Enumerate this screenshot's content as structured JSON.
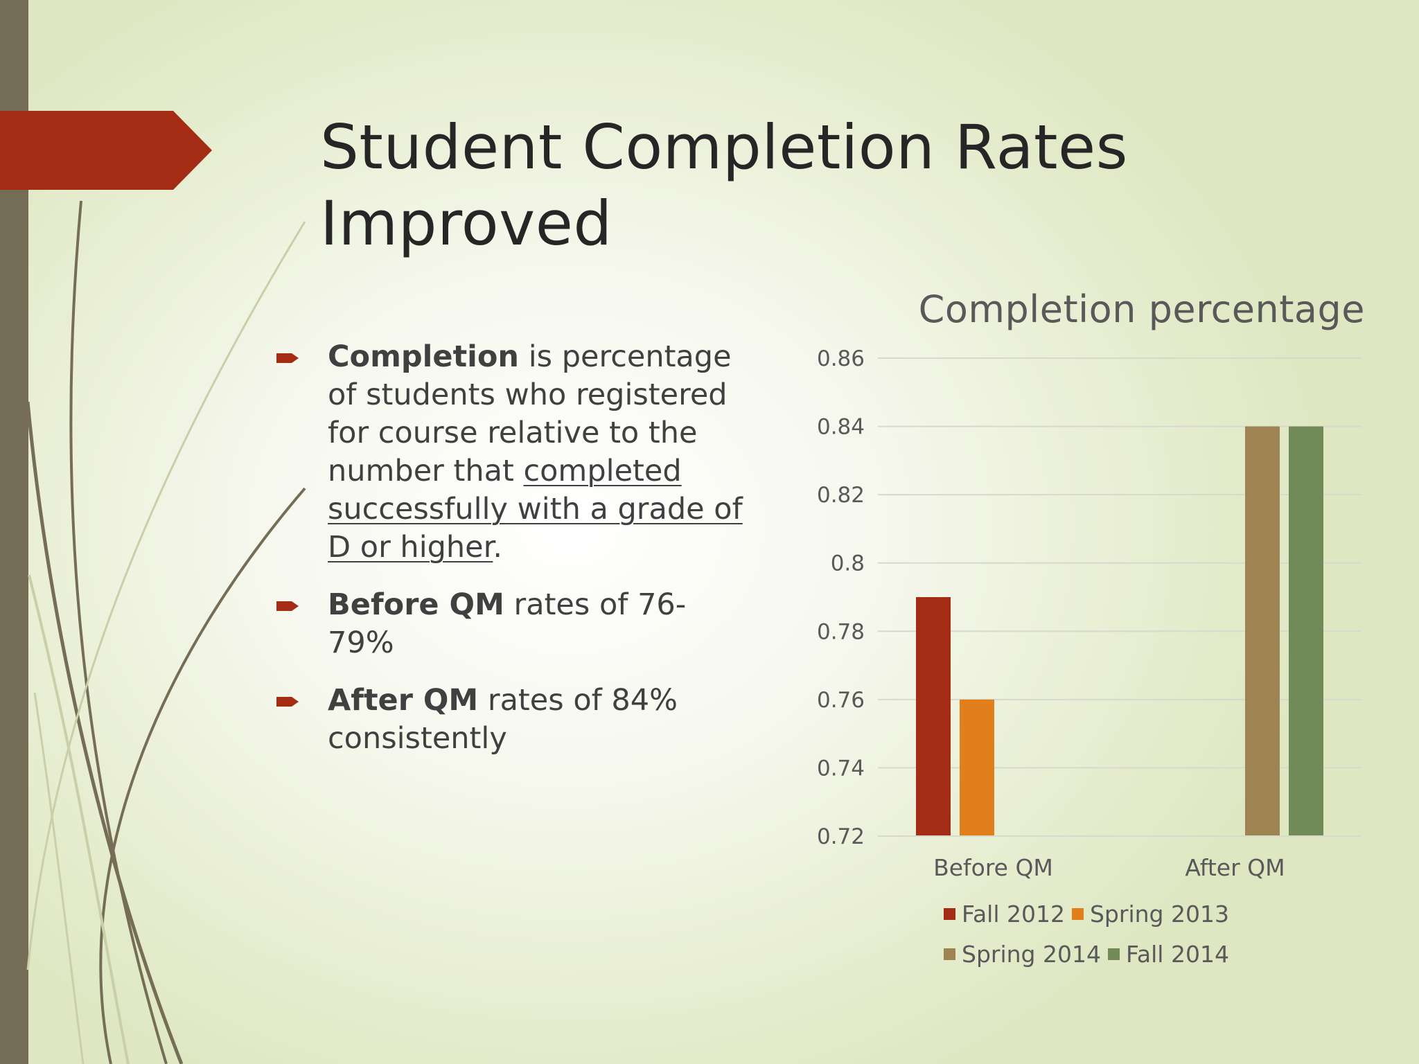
{
  "slide": {
    "title_line1": "Student Completion Rates",
    "title_line2": "Improved"
  },
  "colors": {
    "accent_red": "#a52c14",
    "left_bar": "#756d55",
    "vine": "#756d55",
    "vine_light": "#c9cfa9"
  },
  "bullets": [
    {
      "bold": "Completion",
      "text_a": " is percentage of students who registered for course relative to the number that ",
      "underlined": "completed successfully with a grade of D or higher",
      "text_b": "."
    },
    {
      "bold": "Before QM",
      "text_a": " rates of 76-79%"
    },
    {
      "bold": "After QM",
      "text_a": " rates of 84% consistently"
    }
  ],
  "chart_data": {
    "type": "bar",
    "title": "Completion percentage",
    "categories": [
      "Before QM",
      "After QM"
    ],
    "series": [
      {
        "name": "Fall 2012",
        "color": "#a52c14",
        "values": [
          0.79,
          null
        ]
      },
      {
        "name": "Spring 2013",
        "color": "#e07f1c",
        "values": [
          0.76,
          null
        ]
      },
      {
        "name": "Spring 2014",
        "color": "#9f8453",
        "values": [
          null,
          0.84
        ]
      },
      {
        "name": "Fall 2014",
        "color": "#718a57",
        "values": [
          null,
          0.84
        ]
      }
    ],
    "ylim": [
      0.72,
      0.86
    ],
    "yticks": [
      "0.72",
      "0.74",
      "0.76",
      "0.78",
      "0.8",
      "0.82",
      "0.84",
      "0.86"
    ],
    "grid": true,
    "legend": "bottom"
  }
}
